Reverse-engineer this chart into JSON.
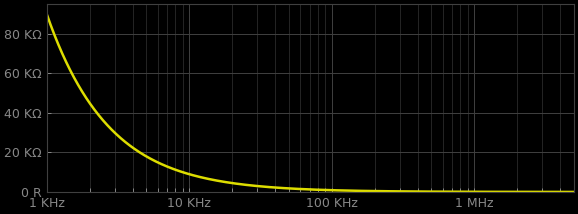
{
  "background_color": "#000000",
  "grid_color": "#404040",
  "line_color": "#dddd00",
  "line_width": 1.8,
  "xlabel_ticks": [
    "1 KHz",
    "10 KHz",
    "100 KHz",
    "1 MHz"
  ],
  "xlabel_tick_vals": [
    1000,
    10000,
    100000,
    1000000
  ],
  "ylabel_ticks": [
    "0 R",
    "20 KΩ",
    "40 KΩ",
    "60 KΩ",
    "80 KΩ"
  ],
  "ylabel_tick_vals": [
    0,
    20000,
    40000,
    60000,
    80000
  ],
  "xmin": 1000,
  "xmax": 5000000,
  "ymin": 0,
  "ymax": 95000,
  "text_color": "#cccccc",
  "tick_color": "#888888",
  "label_fontsize": 9,
  "R": 10000,
  "C": 1.77e-09
}
